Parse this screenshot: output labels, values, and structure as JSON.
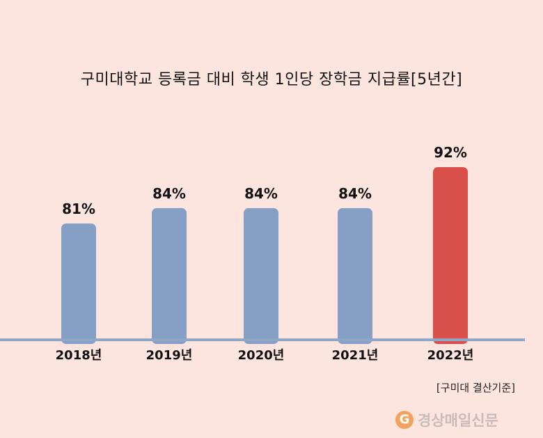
{
  "title": "구미대학교 등록금 대비 학생 1인당 장학금 지급률[5년간]",
  "note": "[구미대 결산기준]",
  "logo": {
    "mark": "G",
    "text": "경상매일신문"
  },
  "colors": {
    "background": "#fce4df",
    "bar": "#85a0c4",
    "highlight": "#d9504a",
    "axis": "#8fa7c6"
  },
  "chart_data": {
    "type": "bar",
    "categories": [
      "2018년",
      "2019년",
      "2020년",
      "2021년",
      "2022년"
    ],
    "values": [
      81,
      84,
      84,
      84,
      92
    ],
    "value_labels": [
      "81%",
      "84%",
      "84%",
      "84%",
      "92%"
    ],
    "highlight_index": 4,
    "title": "구미대학교 등록금 대비 학생 1인당 장학금 지급률[5년간]",
    "unit": "%",
    "grid": false,
    "legend": "none"
  }
}
